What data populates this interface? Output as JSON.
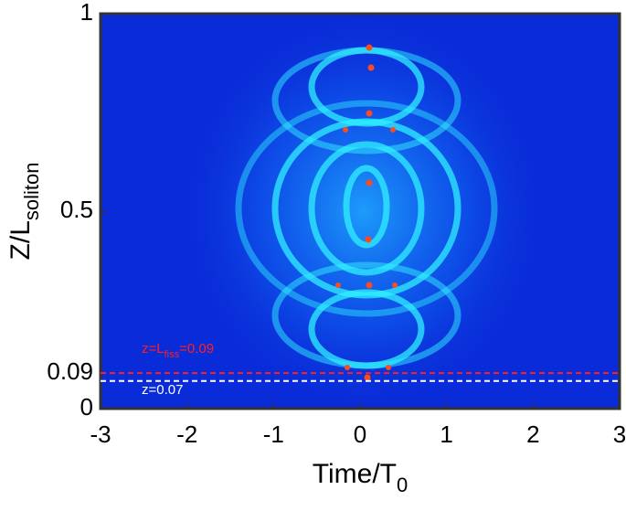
{
  "chart_data": {
    "type": "heatmap",
    "xlabel": "Time/T",
    "xlabel_sub": "0",
    "ylabel": "Z/L",
    "ylabel_sub": "soliton",
    "xlim": [
      -3,
      3
    ],
    "xticks": [
      -3,
      -2,
      -1,
      0,
      1,
      2,
      3
    ],
    "ylim": [
      0,
      1
    ],
    "yticks": [
      0,
      0.09,
      0.5,
      1
    ],
    "annotations": [
      {
        "text": "z=L",
        "sub": "fiss",
        "suffix": "=0.09",
        "y": 0.09,
        "color": "#ff2020"
      },
      {
        "text": "z=0.07",
        "y": 0.07,
        "color": "#ffffff"
      }
    ]
  }
}
